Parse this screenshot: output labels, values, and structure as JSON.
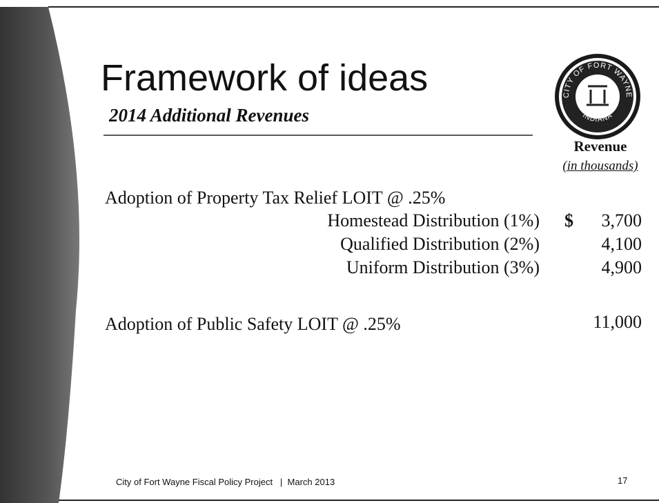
{
  "header": {
    "title": "Framework of ideas",
    "subtitle": "2014 Additional Revenues"
  },
  "logo": {
    "ring_text": "CITY OF FORT WAYNE",
    "state": "INDIANA"
  },
  "column_header": {
    "label": "Revenue",
    "unit": "(in thousands)"
  },
  "sections": [
    {
      "label": "Adoption of Property Tax Relief LOIT @ .25%",
      "rows": [
        {
          "label": "Homestead Distribution (1%)",
          "currency": "$",
          "value": "3,700"
        },
        {
          "label": "Qualified Distribution (2%)",
          "value": "4,100"
        },
        {
          "label": "Uniform Distribution (3%)",
          "value": "4,900"
        }
      ]
    },
    {
      "label": "Adoption of Public Safety LOIT @ .25%",
      "value": "11,000"
    }
  ],
  "footer": {
    "project": "City of Fort Wayne Fiscal Policy Project",
    "separator": "|",
    "date": "March 2013",
    "page": "17"
  }
}
